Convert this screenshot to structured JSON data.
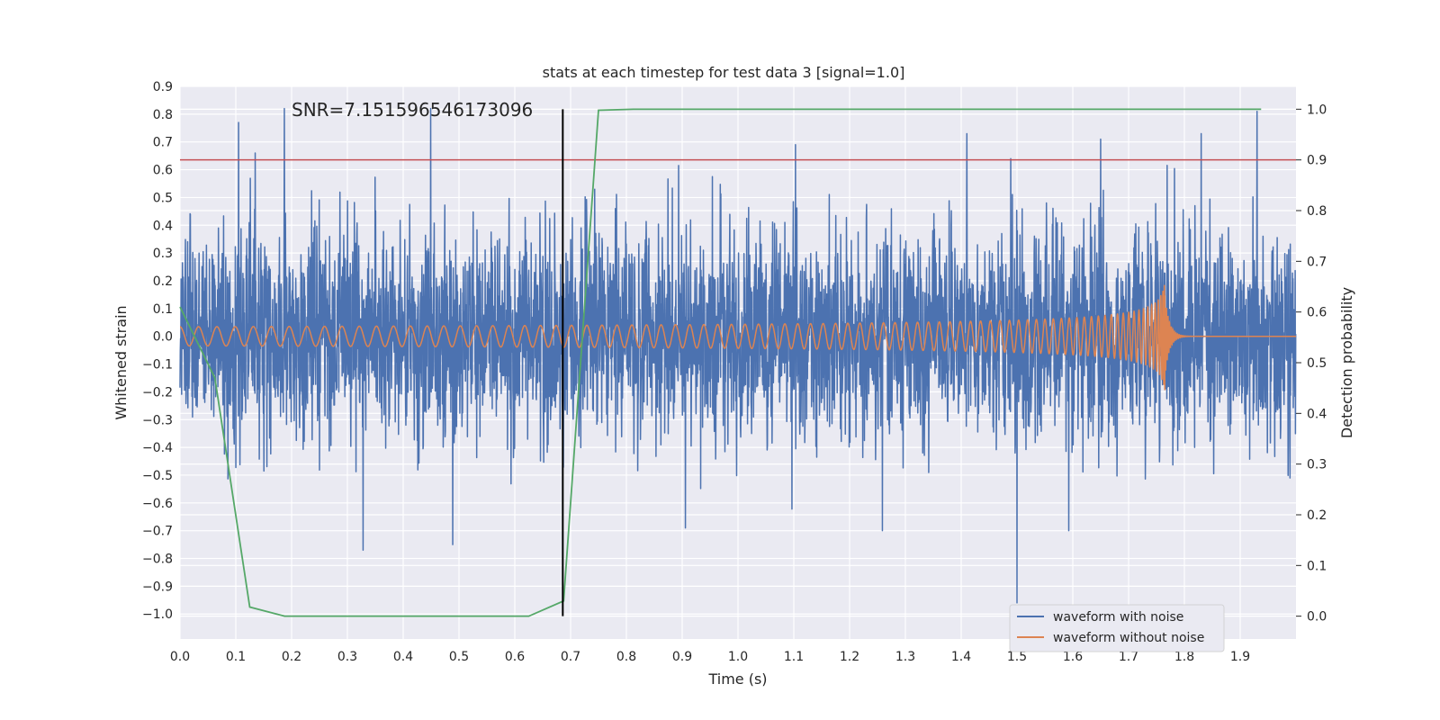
{
  "chart_data": {
    "type": "line",
    "title": "stats at each timestep for test data 3 [signal=1.0]",
    "xlabel": "Time (s)",
    "ylabel_left": "Whitened strain",
    "ylabel_right": "Detection probability",
    "xlim": [
      0.0,
      2.0
    ],
    "ylim_left": [
      -1.09,
      0.9
    ],
    "ylim_right": [
      -0.045,
      1.045
    ],
    "x_ticks": [
      0.0,
      0.1,
      0.2,
      0.3,
      0.4,
      0.5,
      0.6,
      0.7,
      0.8,
      0.9,
      1.0,
      1.1,
      1.2,
      1.3,
      1.4,
      1.5,
      1.6,
      1.7,
      1.8,
      1.9
    ],
    "x_tick_labels": [
      "0.0",
      "0.1",
      "0.2",
      "0.3",
      "0.4",
      "0.5",
      "0.6",
      "0.7",
      "0.8",
      "0.9",
      "1.0",
      "1.1",
      "1.2",
      "1.3",
      "1.4",
      "1.5",
      "1.6",
      "1.7",
      "1.8",
      "1.9"
    ],
    "y_left_ticks": [
      0.9,
      0.8,
      0.7,
      0.6,
      0.5,
      0.4,
      0.3,
      0.2,
      0.1,
      0.0,
      -0.1,
      -0.2,
      -0.3,
      -0.4,
      -0.5,
      -0.6,
      -0.7,
      -0.8,
      -0.9,
      -1.0
    ],
    "y_left_tick_labels": [
      "0.9",
      "0.8",
      "0.7",
      "0.6",
      "0.5",
      "0.4",
      "0.3",
      "0.2",
      "0.1",
      "0.0",
      "−0.1",
      "−0.2",
      "−0.3",
      "−0.4",
      "−0.5",
      "−0.6",
      "−0.7",
      "−0.8",
      "−0.9",
      "−1.0"
    ],
    "y_right_ticks": [
      1.0,
      0.9,
      0.8,
      0.7,
      0.6,
      0.5,
      0.4,
      0.3,
      0.2,
      0.1,
      0.0
    ],
    "y_right_tick_labels": [
      "1.0",
      "0.9",
      "0.8",
      "0.7",
      "0.6",
      "0.5",
      "0.4",
      "0.3",
      "0.2",
      "0.1",
      "0.0"
    ],
    "grid": true,
    "background": "#eaeaf2",
    "annotation": "SNR=7.151596546173096",
    "annotation_x": 0.2,
    "annotation_y": 0.8,
    "threshold_line": {
      "axis": "right",
      "y": 0.9,
      "color": "#c44e52"
    },
    "vertical_line": {
      "x": 0.686,
      "ymin": 0.0,
      "ymax": 1.0,
      "axis": "right",
      "color": "#000000"
    },
    "legend_position": "lower-right",
    "series": [
      {
        "name": "waveform with noise",
        "color": "#4c72b0",
        "axis": "left",
        "kind": "noise",
        "sample_rate": 2048,
        "std": 0.19,
        "peaks": [
          {
            "x": 0.105,
            "y": 0.77
          },
          {
            "x": 0.135,
            "y": 0.66
          },
          {
            "x": 0.187,
            "y": 0.82
          },
          {
            "x": 0.449,
            "y": 0.82
          },
          {
            "x": 0.328,
            "y": -0.77
          },
          {
            "x": 0.489,
            "y": -0.75
          },
          {
            "x": 1.103,
            "y": 0.69
          },
          {
            "x": 1.5,
            "y": -0.96
          },
          {
            "x": 1.93,
            "y": 0.81
          },
          {
            "x": 1.83,
            "y": 0.73
          },
          {
            "x": 1.41,
            "y": 0.73
          },
          {
            "x": 1.65,
            "y": 0.71
          },
          {
            "x": 1.259,
            "y": -0.7
          },
          {
            "x": 0.906,
            "y": -0.69
          },
          {
            "x": 1.593,
            "y": -0.7
          }
        ]
      },
      {
        "name": "waveform without noise",
        "color": "#dd8452",
        "axis": "left",
        "kind": "chirp",
        "merger_time": 1.765,
        "peak_amplitude": 0.21,
        "base_amplitude": 0.03,
        "base_frequency": 30
      },
      {
        "name": "",
        "color": "#55a868",
        "axis": "right",
        "kind": "line",
        "x": [
          0.0,
          0.0625,
          0.125,
          0.1875,
          0.25,
          0.3125,
          0.375,
          0.4375,
          0.5,
          0.5625,
          0.625,
          0.6875,
          0.75,
          0.8125,
          0.875,
          0.9375,
          1.0,
          1.0625,
          1.125,
          1.1875,
          1.25,
          1.3125,
          1.375,
          1.4375,
          1.5,
          1.5625,
          1.625,
          1.6875,
          1.75,
          1.8125,
          1.875,
          1.9375
        ],
        "y": [
          0.61,
          0.47,
          0.018,
          0.0,
          0.0,
          0.0,
          0.0,
          0.0,
          0.0,
          0.0,
          0.0,
          0.03,
          0.998,
          1.0,
          1.0,
          1.0,
          1.0,
          1.0,
          1.0,
          1.0,
          1.0,
          1.0,
          1.0,
          1.0,
          1.0,
          1.0,
          1.0,
          1.0,
          1.0,
          1.0,
          1.0,
          1.0
        ]
      }
    ]
  }
}
